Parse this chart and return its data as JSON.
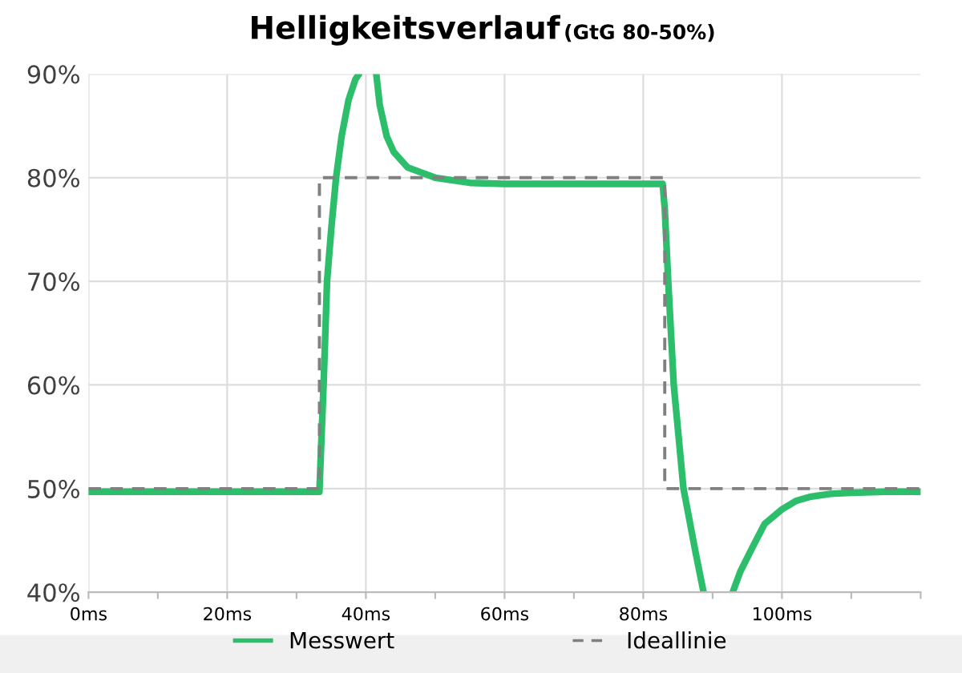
{
  "chart_data": {
    "type": "line",
    "title": "Helligkeitsverlauf",
    "subtitle": "(GtG 80-50%)",
    "xlim": [
      0,
      120
    ],
    "ylim": [
      40,
      90
    ],
    "xticks": [
      {
        "value": 0,
        "label": "0ms"
      },
      {
        "value": 10,
        "label": null
      },
      {
        "value": 20,
        "label": "20ms"
      },
      {
        "value": 30,
        "label": null
      },
      {
        "value": 40,
        "label": "40ms"
      },
      {
        "value": 50,
        "label": null
      },
      {
        "value": 60,
        "label": "60ms"
      },
      {
        "value": 70,
        "label": null
      },
      {
        "value": 80,
        "label": "80ms"
      },
      {
        "value": 90,
        "label": null
      },
      {
        "value": 100,
        "label": "100ms"
      },
      {
        "value": 110,
        "label": null
      },
      {
        "value": 120,
        "label": null
      }
    ],
    "yticks": [
      {
        "value": 40,
        "label": "40%"
      },
      {
        "value": 50,
        "label": "50%"
      },
      {
        "value": 60,
        "label": "60%"
      },
      {
        "value": 70,
        "label": "70%"
      },
      {
        "value": 80,
        "label": "80%"
      },
      {
        "value": 90,
        "label": "90%"
      }
    ],
    "grid": true,
    "legend": "bottom",
    "marker": "none",
    "series": [
      {
        "name": "Messwert",
        "color": "#2dbe6c",
        "line_style": "solid",
        "x": [
          0,
          10,
          20,
          30,
          33.3,
          33.6,
          33.9,
          34.4,
          35,
          35.7,
          36.5,
          37.5,
          38.5,
          39,
          39.5,
          41.5,
          42,
          43,
          44,
          46,
          48,
          50,
          55,
          60,
          70,
          80,
          82.8,
          83.1,
          83.6,
          84.4,
          85.8,
          87.5,
          88.7,
          89,
          92.8,
          92.9,
          94,
          95.5,
          97.5,
          100,
          102,
          104,
          107,
          110,
          115,
          120
        ],
        "values": [
          49.7,
          49.7,
          49.7,
          49.7,
          49.7,
          55,
          60,
          70,
          75,
          80,
          84,
          87.5,
          89.5,
          90,
          null,
          90,
          87,
          84,
          82.5,
          81,
          80.5,
          80,
          79.5,
          79.4,
          79.4,
          79.4,
          79.4,
          77,
          70,
          60,
          50,
          44,
          40,
          null,
          null,
          40,
          42,
          44,
          46.6,
          48,
          48.8,
          49.2,
          49.5,
          49.6,
          49.7,
          49.7
        ]
      },
      {
        "name": "Ideallinie",
        "color": "#808080",
        "line_style": "dashed",
        "x": [
          0,
          33.3,
          33.3,
          83.1,
          83.1,
          120
        ],
        "values": [
          50,
          50,
          80,
          80,
          50,
          50
        ]
      }
    ]
  }
}
